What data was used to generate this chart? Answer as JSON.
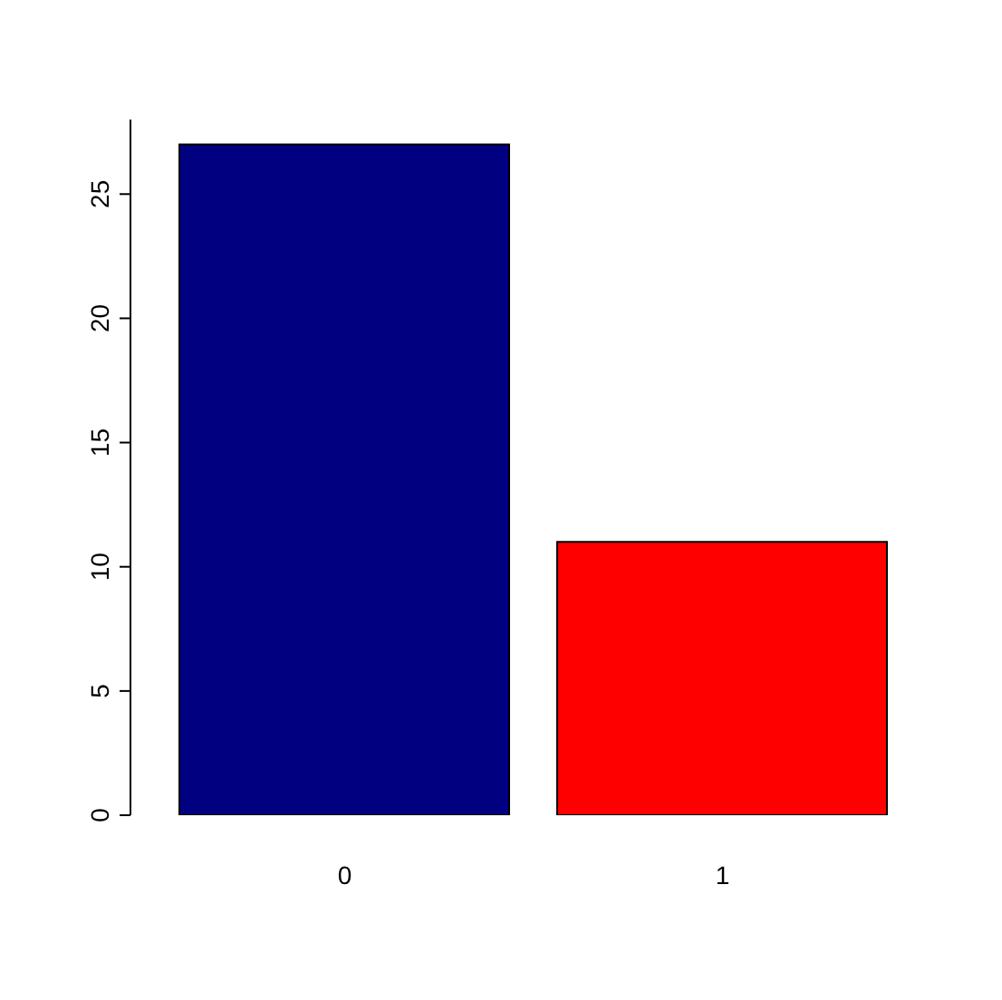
{
  "chart_data": {
    "type": "bar",
    "categories": [
      "0",
      "1"
    ],
    "values": [
      27,
      11
    ],
    "colors": [
      "#000080",
      "#ff0000"
    ],
    "ylim": [
      0,
      28
    ],
    "yticks": [
      0,
      5,
      10,
      15,
      20,
      25
    ],
    "grid": false,
    "legend": false
  }
}
